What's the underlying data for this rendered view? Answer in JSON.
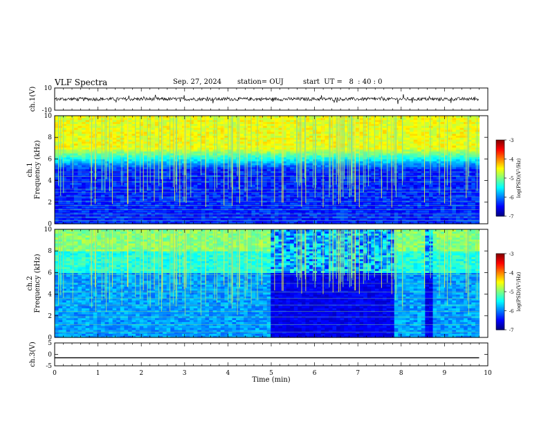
{
  "header": {
    "title": "VLF Spectra",
    "date": "Sep. 27, 2024",
    "station": "station= OUJ",
    "start": "start  UT =   8  : 40 : 0"
  },
  "chart_data": [
    {
      "type": "line",
      "panel": "ch1-waveform",
      "ylabel": "ch.1(V)",
      "ylim": [
        -10,
        10
      ],
      "yticks": [
        "10",
        "-10"
      ],
      "xlim": [
        0,
        10
      ],
      "trace_baseline": 0,
      "trace_amplitude": 1.5,
      "trace_end": 9.8
    },
    {
      "type": "heatmap",
      "panel": "ch1-spectrogram",
      "ylabel": "ch.1 Frequency (kHz)",
      "ylim": [
        0,
        10
      ],
      "yticks": [
        "0",
        "2",
        "4",
        "6",
        "8",
        "10"
      ],
      "xlim": [
        0,
        10
      ],
      "data_end": 9.8,
      "colorbar": {
        "label": "log(PSD)(V²/Hz)",
        "range": [
          -7,
          -3
        ],
        "ticks": [
          "-3",
          "-4",
          "-5",
          "-6",
          "-7"
        ]
      }
    },
    {
      "type": "heatmap",
      "panel": "ch2-spectrogram",
      "ylabel": "ch.2 Frequency (kHz)",
      "ylim": [
        0,
        10
      ],
      "yticks": [
        "0",
        "2",
        "4",
        "6",
        "8",
        "10"
      ],
      "xlim": [
        0,
        10
      ],
      "data_end": 9.8,
      "quiet_intervals": [
        [
          5.0,
          7.85
        ],
        [
          8.55,
          8.75
        ]
      ],
      "colorbar": {
        "label": "log(PSD)(V²/Hz)",
        "range": [
          -7,
          -3
        ],
        "ticks": [
          "-3",
          "-4",
          "-5",
          "-6",
          "-7"
        ]
      }
    },
    {
      "type": "line",
      "panel": "ch3-waveform",
      "ylabel": "ch.3(V)",
      "ylim": [
        -5,
        5
      ],
      "yticks": [
        "5",
        "0",
        "-5"
      ],
      "xlim": [
        0,
        10
      ],
      "trace_value": -1.5,
      "trace_end": 9.8,
      "xlabel": "Time (min)",
      "xticks": [
        "0",
        "1",
        "2",
        "3",
        "4",
        "5",
        "6",
        "7",
        "8",
        "9",
        "10"
      ]
    }
  ]
}
